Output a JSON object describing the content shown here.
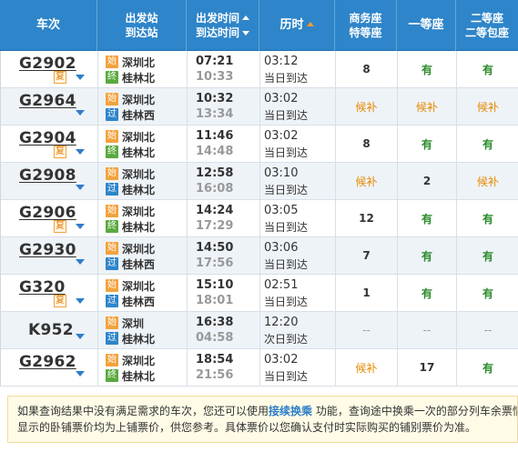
{
  "header": {
    "train": "车次",
    "station_top": "出发站",
    "station_bottom": "到达站",
    "time_top": "出发时间",
    "time_bottom": "到达时间",
    "duration": "历时",
    "business_top": "商务座",
    "business_bottom": "特等座",
    "first": "一等座",
    "second_top": "二等座",
    "second_bottom": "二等包座"
  },
  "badges": {
    "start": "始",
    "end": "终",
    "pass": "过",
    "fu": "复"
  },
  "rows": [
    {
      "train": "G2902",
      "fu": true,
      "from_type": "start",
      "from": "深圳北",
      "to_type": "end",
      "to": "桂林北",
      "dep": "07:21",
      "arr": "10:33",
      "dur": "03:12",
      "day": "当日到达",
      "biz": "8",
      "first": "有",
      "second": "有"
    },
    {
      "train": "G2964",
      "fu": false,
      "from_type": "start",
      "from": "深圳北",
      "to_type": "pass",
      "to": "桂林西",
      "dep": "10:32",
      "arr": "13:34",
      "dur": "03:02",
      "day": "当日到达",
      "biz": "候补",
      "first": "候补",
      "second": "候补"
    },
    {
      "train": "G2904",
      "fu": true,
      "from_type": "start",
      "from": "深圳北",
      "to_type": "end",
      "to": "桂林北",
      "dep": "11:46",
      "arr": "14:48",
      "dur": "03:02",
      "day": "当日到达",
      "biz": "8",
      "first": "有",
      "second": "有"
    },
    {
      "train": "G2908",
      "fu": false,
      "from_type": "start",
      "from": "深圳北",
      "to_type": "pass",
      "to": "桂林北",
      "dep": "12:58",
      "arr": "16:08",
      "dur": "03:10",
      "day": "当日到达",
      "biz": "候补",
      "first": "2",
      "second": "候补"
    },
    {
      "train": "G2906",
      "fu": true,
      "from_type": "start",
      "from": "深圳北",
      "to_type": "end",
      "to": "桂林北",
      "dep": "14:24",
      "arr": "17:29",
      "dur": "03:05",
      "day": "当日到达",
      "biz": "12",
      "first": "有",
      "second": "有"
    },
    {
      "train": "G2930",
      "fu": false,
      "from_type": "start",
      "from": "深圳北",
      "to_type": "pass",
      "to": "桂林西",
      "dep": "14:50",
      "arr": "17:56",
      "dur": "03:06",
      "day": "当日到达",
      "biz": "7",
      "first": "有",
      "second": "有"
    },
    {
      "train": "G320",
      "fu": true,
      "from_type": "start",
      "from": "深圳北",
      "to_type": "pass",
      "to": "桂林西",
      "dep": "15:10",
      "arr": "18:01",
      "dur": "02:51",
      "day": "当日到达",
      "biz": "1",
      "first": "有",
      "second": "有"
    },
    {
      "train": "K952",
      "fu": false,
      "from_type": "start",
      "from": "深圳",
      "to_type": "pass",
      "to": "桂林北",
      "dep": "16:38",
      "arr": "04:58",
      "dur": "12:20",
      "day": "次日到达",
      "biz": "--",
      "first": "--",
      "second": "--"
    },
    {
      "train": "G2962",
      "fu": false,
      "from_type": "start",
      "from": "深圳北",
      "to_type": "end",
      "to": "桂林北",
      "dep": "18:54",
      "arr": "21:56",
      "dur": "03:02",
      "day": "当日到达",
      "biz": "候补",
      "first": "17",
      "second": "有"
    }
  ],
  "notice": {
    "line1_prefix": "如果查询结果中没有满足需求的车次，您还可以使用",
    "line1_link": "接续换乘",
    "line1_suffix": " 功能，查询途中换乘一次的部分列车余票情",
    "line2": "显示的卧铺票价均为上铺票价，供您参考。具体票价以您确认支付时实际购买的铺别票价为准。"
  },
  "colors": {
    "header_bg": "#2e85c9",
    "available": "#2a8b2a",
    "waitlist": "#e68a00"
  }
}
